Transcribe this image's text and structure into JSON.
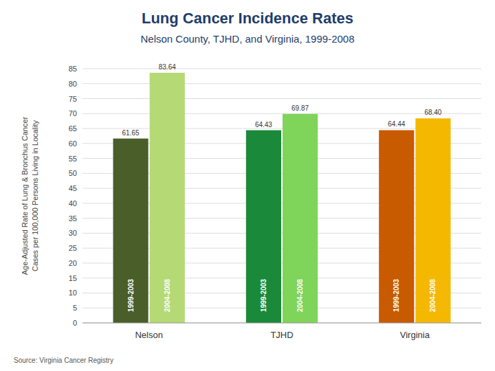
{
  "chart_data": {
    "type": "bar",
    "title": "Lung Cancer Incidence Rates",
    "subtitle": "Nelson County, TJHD, and Virginia, 1999-2008",
    "ylabel": "Age-Adjusted Rate of Lung & Bronchus Cancer\nCases per 100,000 Persons Living in Locality",
    "source": "Source: Virginia Cancer Registry",
    "categories": [
      "Nelson",
      "TJHD",
      "Virginia"
    ],
    "series": [
      {
        "name": "1999-2003",
        "colors": [
          "#4a5e2a",
          "#1a8a3a",
          "#c85a00"
        ],
        "values": [
          61.65,
          64.43,
          64.44
        ],
        "value_labels": [
          "61.65",
          "64.43",
          "64.44"
        ]
      },
      {
        "name": "2004-2008",
        "colors": [
          "#b5d975",
          "#7fd45a",
          "#f5b800"
        ],
        "values": [
          83.64,
          69.87,
          68.4
        ],
        "value_labels": [
          "83.64",
          "69.87",
          "68.40"
        ]
      }
    ],
    "ylim": [
      0,
      85
    ],
    "yticks": [
      0,
      5,
      10,
      15,
      20,
      25,
      30,
      35,
      40,
      45,
      50,
      55,
      60,
      65,
      70,
      75,
      80,
      85
    ],
    "grid": true,
    "data_labels": true
  }
}
